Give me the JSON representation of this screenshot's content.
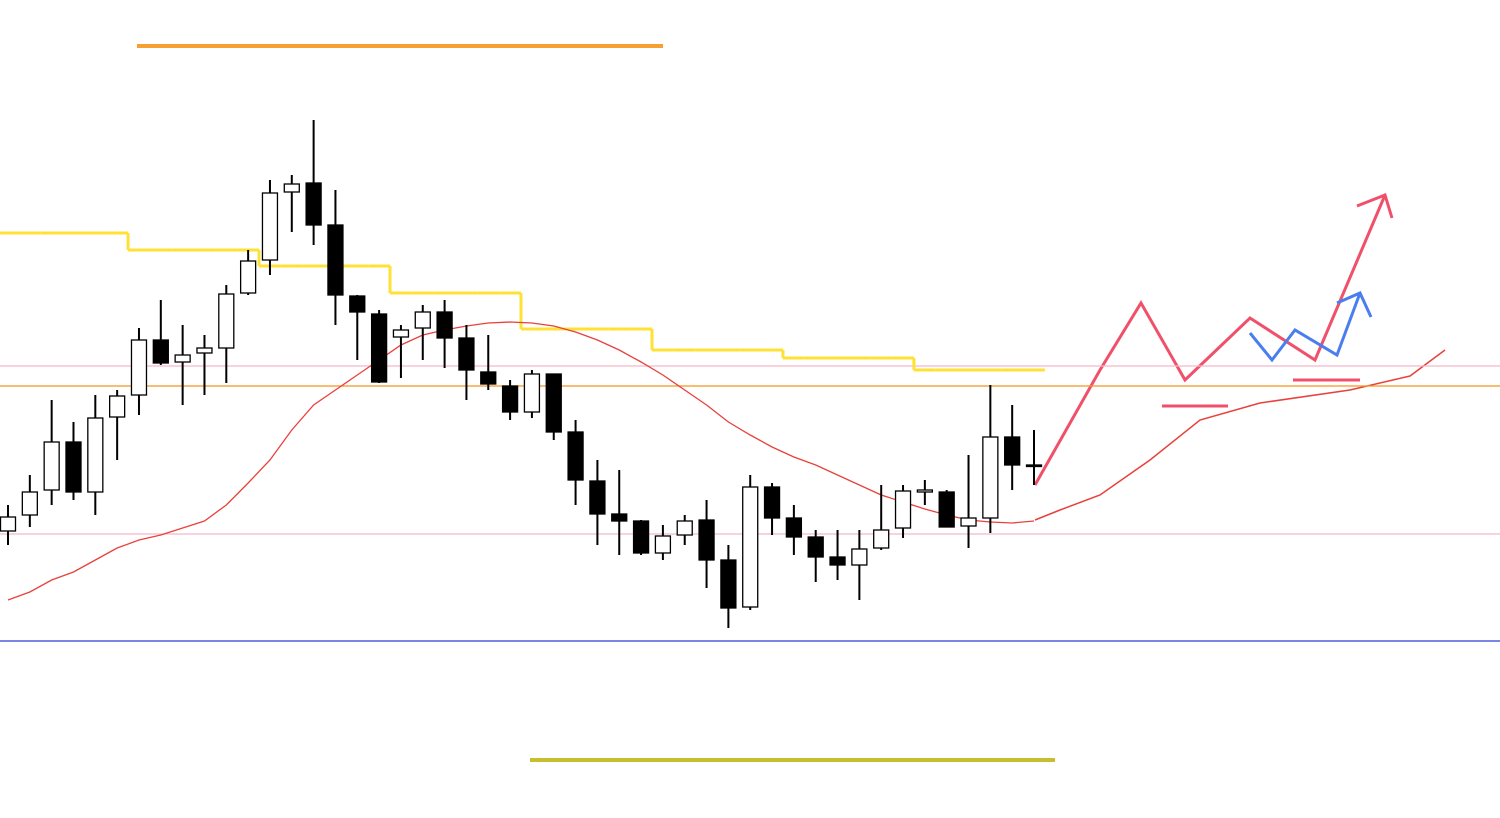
{
  "chart_data": {
    "type": "candlestick",
    "open": [
      287,
      303,
      328,
      376,
      326,
      401,
      423,
      478,
      456,
      465,
      470,
      525,
      558,
      626,
      635,
      593,
      522,
      504,
      481,
      490,
      506,
      480,
      446,
      432,
      406,
      444,
      386,
      337,
      304,
      297,
      265,
      283,
      298,
      258,
      211,
      331,
      300,
      281,
      261,
      253,
      270,
      290,
      326,
      326,
      292,
      300,
      381,
      353
    ],
    "high": [
      313,
      343,
      418,
      396,
      423,
      428,
      490,
      518,
      493,
      483,
      533,
      568,
      638,
      643,
      698,
      628,
      523,
      508,
      493,
      513,
      518,
      493,
      483,
      438,
      448,
      444,
      398,
      358,
      348,
      298,
      293,
      303,
      318,
      273,
      343,
      335,
      313,
      288,
      288,
      288,
      333,
      333,
      338,
      328,
      363,
      433,
      413,
      388
    ],
    "low": [
      273,
      291,
      313,
      318,
      303,
      358,
      403,
      453,
      413,
      423,
      435,
      523,
      543,
      586,
      573,
      493,
      458,
      435,
      440,
      458,
      450,
      418,
      428,
      398,
      400,
      378,
      313,
      273,
      263,
      263,
      258,
      273,
      230,
      190,
      208,
      283,
      263,
      236,
      238,
      218,
      268,
      280,
      313,
      293,
      270,
      285,
      328,
      333
    ],
    "close": [
      301,
      326,
      376,
      326,
      400,
      422,
      478,
      455,
      463,
      470,
      524,
      557,
      625,
      634,
      593,
      523,
      506,
      436,
      488,
      506,
      480,
      448,
      434,
      406,
      444,
      386,
      338,
      304,
      297,
      265,
      282,
      297,
      258,
      210,
      331,
      300,
      281,
      261,
      253,
      269,
      288,
      327,
      328,
      291,
      300,
      381,
      353,
      352
    ],
    "up_color": "#ffffff",
    "down_color": "#000000",
    "ma": {
      "color": "#e8413c",
      "values": [
        218,
        226,
        238,
        246,
        258,
        270,
        278,
        283,
        290,
        297,
        313,
        335,
        358,
        388,
        413,
        428,
        443,
        458,
        473,
        483,
        488,
        492,
        495,
        496,
        495,
        492,
        486,
        478,
        468,
        456,
        443,
        428,
        413,
        396,
        383,
        371,
        361,
        353,
        343,
        333,
        323,
        316,
        309,
        303,
        298,
        296,
        295,
        297
      ]
    },
    "baseline": {
      "color": "#ffe135",
      "values": [
        585,
        585,
        585,
        585,
        585,
        585,
        568,
        568,
        568,
        568,
        568,
        568,
        552,
        552,
        552,
        552,
        552,
        552,
        525,
        525,
        525,
        525,
        525,
        525,
        489,
        489,
        489,
        489,
        489,
        489,
        468,
        468,
        468,
        468,
        468,
        468,
        460,
        460,
        460,
        460,
        460,
        460,
        448,
        448,
        448,
        448,
        448,
        448
      ]
    },
    "levels": [
      {
        "value": 432,
        "color": "#f7931e"
      },
      {
        "value": 452,
        "color": "#f4b8c8"
      },
      {
        "value": 284,
        "color": "#f4b8c8"
      },
      {
        "value": 177,
        "color": "#2a3fd6"
      }
    ],
    "ylim": [
      0,
      818
    ]
  }
}
